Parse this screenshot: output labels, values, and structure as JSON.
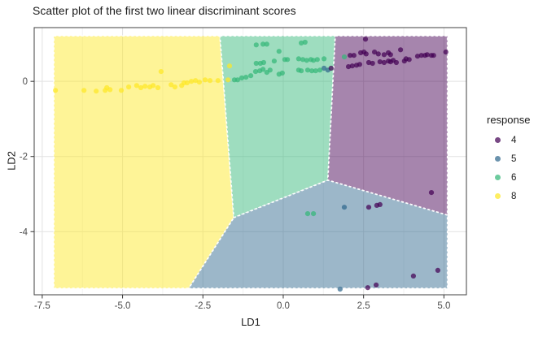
{
  "chart_data": {
    "type": "scatter",
    "title": "Scatter plot of the first two linear discriminant scores",
    "xlabel": "LD1",
    "ylabel": "LD2",
    "xlim": [
      -7.75,
      5.7
    ],
    "ylim": [
      -5.68,
      1.43
    ],
    "x_ticks": {
      "values": [
        -7.5,
        -5.0,
        -2.5,
        0.0,
        2.5,
        5.0
      ],
      "labels": [
        "-7.5",
        "-5.0",
        "-2.5",
        "0.0",
        "2.5",
        "5.0"
      ]
    },
    "y_ticks": {
      "values": [
        0,
        -2,
        -4
      ],
      "labels": [
        "0",
        "-2",
        "-4"
      ]
    },
    "grid": {
      "major": true,
      "minor": true
    },
    "legend": {
      "title": "response",
      "position": "right",
      "entries": [
        {
          "label": "4",
          "color": "#440154"
        },
        {
          "label": "5",
          "color": "#31688E"
        },
        {
          "label": "6",
          "color": "#35B779"
        },
        {
          "label": "8",
          "color": "#FDE725"
        }
      ]
    },
    "point_alpha": 0.72,
    "region_alpha": 0.48,
    "decision_regions": [
      {
        "response": "8",
        "color": "#FDE725",
        "polygon": [
          [
            -7.14,
            1.21
          ],
          [
            -1.97,
            1.21
          ],
          [
            -1.54,
            -3.63
          ],
          [
            -2.94,
            -5.51
          ],
          [
            -7.14,
            -5.51
          ]
        ]
      },
      {
        "response": "6",
        "color": "#35B779",
        "polygon": [
          [
            -1.97,
            1.21
          ],
          [
            1.62,
            1.21
          ],
          [
            1.39,
            -2.63
          ],
          [
            -1.54,
            -3.63
          ]
        ]
      },
      {
        "response": "4",
        "color": "#440154",
        "polygon": [
          [
            1.62,
            1.21
          ],
          [
            5.11,
            1.21
          ],
          [
            5.11,
            -3.56
          ],
          [
            1.39,
            -2.63
          ]
        ]
      },
      {
        "response": "5",
        "color": "#31688E",
        "polygon": [
          [
            -1.54,
            -3.63
          ],
          [
            1.39,
            -2.63
          ],
          [
            5.11,
            -3.56
          ],
          [
            5.11,
            -5.51
          ],
          [
            -2.94,
            -5.51
          ]
        ]
      }
    ],
    "series": [
      {
        "name": "4",
        "color": "#440154",
        "points": [
          [
            1.49,
            0.35
          ],
          [
            2.56,
            1.12
          ],
          [
            2.08,
            0.69
          ],
          [
            2.2,
            0.69
          ],
          [
            2.41,
            0.76
          ],
          [
            2.51,
            0.78
          ],
          [
            2.58,
            0.73
          ],
          [
            2.84,
            0.78
          ],
          [
            2.96,
            0.73
          ],
          [
            3.14,
            0.71
          ],
          [
            3.27,
            0.76
          ],
          [
            3.34,
            0.71
          ],
          [
            3.65,
            0.84
          ],
          [
            3.82,
            0.6
          ],
          [
            4.18,
            0.67
          ],
          [
            4.3,
            0.69
          ],
          [
            4.41,
            0.69
          ],
          [
            4.48,
            0.71
          ],
          [
            4.61,
            0.69
          ],
          [
            4.68,
            0.69
          ],
          [
            5.06,
            0.78
          ],
          [
            2.03,
            0.39
          ],
          [
            2.15,
            0.41
          ],
          [
            2.28,
            0.43
          ],
          [
            2.38,
            0.45
          ],
          [
            2.66,
            0.5
          ],
          [
            2.78,
            0.48
          ],
          [
            3.01,
            0.52
          ],
          [
            3.14,
            0.5
          ],
          [
            3.27,
            0.54
          ],
          [
            3.34,
            0.52
          ],
          [
            3.42,
            0.56
          ],
          [
            3.52,
            0.5
          ],
          [
            3.77,
            0.54
          ],
          [
            3.92,
            0.58
          ],
          [
            2.66,
            -3.35
          ],
          [
            2.91,
            -3.3
          ],
          [
            3.01,
            -3.28
          ],
          [
            4.61,
            -2.96
          ],
          [
            4.05,
            -5.18
          ],
          [
            4.81,
            -5.03
          ],
          [
            2.63,
            -5.49
          ],
          [
            2.89,
            -5.42
          ]
        ]
      },
      {
        "name": "5",
        "color": "#31688E",
        "points": [
          [
            1.27,
            0.35
          ],
          [
            1.39,
            0.3
          ],
          [
            1.9,
            -3.35
          ],
          [
            1.77,
            -5.53
          ]
        ]
      },
      {
        "name": "6",
        "color": "#35B779",
        "points": [
          [
            -1.52,
            0.04
          ],
          [
            -1.42,
            0.04
          ],
          [
            -1.29,
            0.09
          ],
          [
            -1.16,
            0.11
          ],
          [
            -1.01,
            0.15
          ],
          [
            -0.86,
            0.26
          ],
          [
            -0.73,
            0.28
          ],
          [
            -0.63,
            0.32
          ],
          [
            -0.51,
            0.24
          ],
          [
            -0.84,
            0.48
          ],
          [
            -0.71,
            0.48
          ],
          [
            -0.61,
            0.5
          ],
          [
            -0.84,
            0.97
          ],
          [
            -0.63,
            0.99
          ],
          [
            -0.51,
            0.99
          ],
          [
            -0.13,
            0.8
          ],
          [
            0.56,
            1.02
          ],
          [
            0.68,
            1.04
          ],
          [
            -0.41,
            0.3
          ],
          [
            -0.28,
            0.54
          ],
          [
            -0.13,
            0.19
          ],
          [
            -0.03,
            0.22
          ],
          [
            0.05,
            0.58
          ],
          [
            0.13,
            0.58
          ],
          [
            0.48,
            0.3
          ],
          [
            0.56,
            0.28
          ],
          [
            0.48,
            0.6
          ],
          [
            0.61,
            0.58
          ],
          [
            0.73,
            0.56
          ],
          [
            0.86,
            0.58
          ],
          [
            0.94,
            0.56
          ],
          [
            1.06,
            0.58
          ],
          [
            0.76,
            0.3
          ],
          [
            0.89,
            0.28
          ],
          [
            1.01,
            0.28
          ],
          [
            1.14,
            0.3
          ],
          [
            1.27,
            0.6
          ],
          [
            1.9,
            0.65
          ],
          [
            0.76,
            -3.52
          ],
          [
            0.94,
            -3.52
          ]
        ]
      },
      {
        "name": "8",
        "color": "#FDE725",
        "points": [
          [
            -7.09,
            -0.24
          ],
          [
            -6.2,
            -0.24
          ],
          [
            -5.82,
            -0.26
          ],
          [
            -5.54,
            -0.24
          ],
          [
            -5.49,
            -0.17
          ],
          [
            -5.39,
            -0.22
          ],
          [
            -5.04,
            -0.24
          ],
          [
            -4.81,
            -0.15
          ],
          [
            -4.56,
            -0.11
          ],
          [
            -4.43,
            -0.17
          ],
          [
            -4.3,
            -0.13
          ],
          [
            -4.15,
            -0.15
          ],
          [
            -4.05,
            -0.11
          ],
          [
            -3.9,
            -0.17
          ],
          [
            -3.8,
            0.26
          ],
          [
            -3.49,
            -0.09
          ],
          [
            -3.37,
            -0.15
          ],
          [
            -3.16,
            -0.11
          ],
          [
            -3.09,
            -0.04
          ],
          [
            -2.99,
            -0.04
          ],
          [
            -2.86,
            0.0
          ],
          [
            -2.73,
            0.02
          ],
          [
            -2.61,
            -0.02
          ],
          [
            -2.43,
            0.04
          ],
          [
            -2.28,
            0.02
          ],
          [
            -2.03,
            0.02
          ],
          [
            -1.72,
            0.04
          ],
          [
            -1.67,
            0.41
          ]
        ]
      }
    ]
  }
}
